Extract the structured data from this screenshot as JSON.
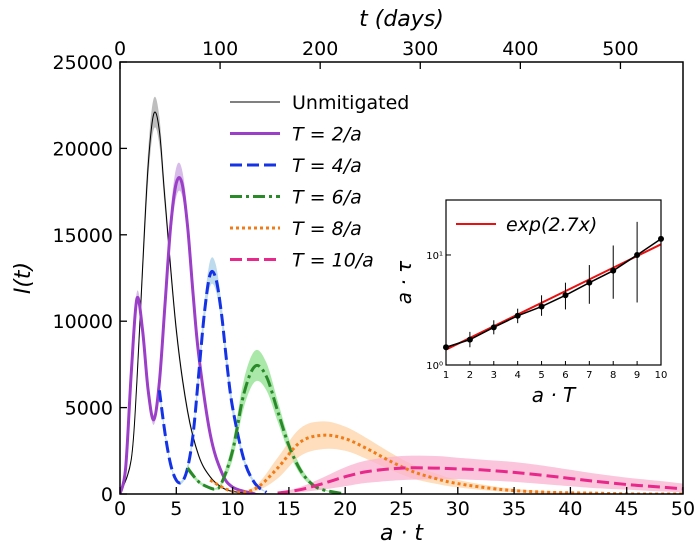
{
  "chart_data": [
    {
      "type": "line",
      "x_label": "a · t",
      "x2_label": "t (days)",
      "y_label": "I(t)",
      "xlim": [
        0,
        50
      ],
      "xticks": [
        0,
        5,
        10,
        15,
        20,
        25,
        30,
        35,
        40,
        45,
        50
      ],
      "x2lim": [
        0,
        562.5
      ],
      "x2ticks": [
        0,
        100,
        200,
        300,
        400,
        500
      ],
      "ylim": [
        0,
        25000
      ],
      "yticks": [
        0,
        5000,
        10000,
        15000,
        20000,
        25000
      ],
      "legend": "upper center",
      "series": [
        {
          "name": "Unmitigated",
          "color": "#000000",
          "band_color": "#a8a8a8",
          "style": "solid",
          "width": 1,
          "x": [
            0,
            1,
            1.5,
            2,
            2.5,
            3,
            3.5,
            4,
            5,
            6,
            7,
            8,
            9,
            10,
            12,
            15
          ],
          "values": [
            0,
            2000,
            6500,
            13000,
            19000,
            22000,
            21000,
            17000,
            9500,
            4800,
            2200,
            1000,
            400,
            150,
            20,
            0
          ],
          "lower": [
            0,
            1800,
            6100,
            12300,
            18100,
            21100,
            20200,
            16400,
            9100,
            4550,
            2080,
            940,
            370,
            140,
            20,
            0
          ],
          "upper": [
            0,
            2200,
            6900,
            13700,
            19900,
            22900,
            21800,
            17600,
            9900,
            5050,
            2320,
            1060,
            430,
            160,
            20,
            0
          ]
        },
        {
          "name": "T = 2/a",
          "color": "#9b3fc8",
          "band_color": "#c9a4e0",
          "style": "solid",
          "width": 3,
          "x": [
            0,
            0.5,
            1,
            1.5,
            2,
            2.5,
            3,
            3.5,
            4,
            4.5,
            5,
            5.5,
            6,
            6.5,
            7,
            8,
            9,
            10,
            12
          ],
          "values": [
            0,
            1500,
            7000,
            11300,
            9500,
            6000,
            4300,
            6500,
            11000,
            15500,
            18000,
            18000,
            15500,
            11500,
            8000,
            3500,
            1300,
            400,
            0
          ],
          "lower": [
            0,
            1400,
            6700,
            10900,
            9100,
            5700,
            4000,
            6100,
            10400,
            14700,
            17200,
            17300,
            14900,
            11000,
            7600,
            3300,
            1200,
            350,
            0
          ],
          "upper": [
            0,
            1600,
            7300,
            11700,
            9900,
            6300,
            4600,
            6900,
            11600,
            16300,
            18900,
            18800,
            16200,
            12000,
            8400,
            3700,
            1400,
            450,
            0
          ]
        },
        {
          "name": "T = 4/a",
          "color": "#1432e6",
          "band_color": "#a8cfe8",
          "style": "dash",
          "width": 3,
          "x": [
            3.5,
            4,
            4.5,
            5,
            5.5,
            6,
            6.5,
            7,
            7.5,
            8,
            8.5,
            9,
            9.5,
            10,
            11,
            12,
            13
          ],
          "values": [
            6000,
            3500,
            1700,
            800,
            700,
            1500,
            3500,
            7000,
            10500,
            12700,
            12500,
            10500,
            7500,
            5000,
            2000,
            600,
            100
          ],
          "lower": [
            5700,
            3300,
            1600,
            700,
            600,
            1300,
            3200,
            6500,
            9900,
            12000,
            11800,
            9900,
            7000,
            4600,
            1800,
            500,
            80
          ],
          "upper": [
            6300,
            3700,
            1800,
            900,
            800,
            1700,
            3800,
            7500,
            11100,
            13500,
            13300,
            11100,
            8000,
            5400,
            2200,
            700,
            120
          ]
        },
        {
          "name": "T = 6/a",
          "color": "#2a8a2a",
          "band_color": "#8ee08e",
          "style": "dashdot",
          "width": 3,
          "x": [
            6,
            7,
            8,
            8.5,
            9,
            10,
            11,
            12,
            13,
            14,
            15,
            16,
            17,
            18,
            20
          ],
          "values": [
            1500,
            700,
            350,
            300,
            600,
            2500,
            5800,
            7400,
            6800,
            4800,
            2800,
            1400,
            600,
            250,
            0
          ],
          "lower": [
            1300,
            600,
            300,
            250,
            450,
            2000,
            5000,
            6500,
            6000,
            4200,
            2400,
            1150,
            480,
            200,
            0
          ],
          "upper": [
            1700,
            800,
            400,
            350,
            750,
            3000,
            6600,
            8300,
            7600,
            5400,
            3200,
            1650,
            720,
            300,
            0
          ]
        },
        {
          "name": "T = 8/a",
          "color": "#f07b17",
          "band_color": "#fdd3a6",
          "style": "dot",
          "width": 3,
          "x": [
            8,
            10,
            12,
            14,
            16,
            18,
            20,
            22,
            24,
            26,
            28,
            30,
            34,
            38,
            42,
            46,
            50
          ],
          "values": [
            800,
            150,
            300,
            1500,
            3000,
            3400,
            3200,
            2600,
            1900,
            1300,
            900,
            600,
            250,
            100,
            50,
            0,
            0
          ],
          "lower": [
            700,
            100,
            150,
            900,
            2200,
            2600,
            2500,
            2000,
            1400,
            900,
            600,
            380,
            130,
            40,
            10,
            0,
            0
          ],
          "upper": [
            900,
            200,
            450,
            2100,
            3800,
            4200,
            3900,
            3200,
            2400,
            1700,
            1200,
            820,
            370,
            160,
            90,
            0,
            0
          ]
        },
        {
          "name": "T = 10/a",
          "color": "#e8288a",
          "band_color": "#f9b3cf",
          "style": "dash",
          "width": 3,
          "x": [
            14,
            16,
            18,
            20,
            22,
            25,
            28,
            30,
            32,
            35,
            38,
            40,
            42,
            45,
            48,
            50
          ],
          "values": [
            50,
            250,
            600,
            1000,
            1300,
            1500,
            1500,
            1450,
            1400,
            1250,
            1050,
            900,
            750,
            550,
            400,
            300
          ],
          "lower": [
            20,
            100,
            250,
            450,
            650,
            800,
            850,
            850,
            800,
            700,
            550,
            450,
            350,
            250,
            150,
            100
          ],
          "upper": [
            80,
            400,
            950,
            1550,
            1950,
            2200,
            2200,
            2100,
            2000,
            1850,
            1600,
            1400,
            1200,
            950,
            750,
            600
          ]
        }
      ]
    },
    {
      "type": "scatter",
      "x_label": "a · T",
      "y_label": "a · τ",
      "log_y": true,
      "xlim": [
        1,
        10
      ],
      "xticks": [
        1,
        2,
        3,
        4,
        5,
        6,
        7,
        8,
        9,
        10
      ],
      "ylim": [
        1,
        31.6
      ],
      "yticks": [
        {
          "value": 1,
          "label": "10⁰"
        },
        {
          "value": 10,
          "label": "10¹"
        }
      ],
      "legend": "upper left",
      "series": [
        {
          "color": "#000000",
          "x": [
            1,
            2,
            3,
            4,
            5,
            6,
            7,
            8,
            9,
            10
          ],
          "values": [
            1.45,
            1.7,
            2.2,
            2.8,
            3.4,
            4.3,
            5.6,
            7.2,
            10,
            14
          ],
          "err_low": [
            0.15,
            0.25,
            0.3,
            0.4,
            0.6,
            1.1,
            2,
            3.2,
            6.3,
            6
          ],
          "err_high": [
            0.2,
            0.3,
            0.35,
            0.45,
            0.9,
            1.3,
            2.5,
            5,
            10,
            8
          ]
        },
        {
          "name": "exp(2.7x)",
          "type": "line",
          "color": "#e81010",
          "x": [
            1,
            10
          ],
          "values": [
            1.38,
            12.5
          ]
        }
      ]
    }
  ]
}
